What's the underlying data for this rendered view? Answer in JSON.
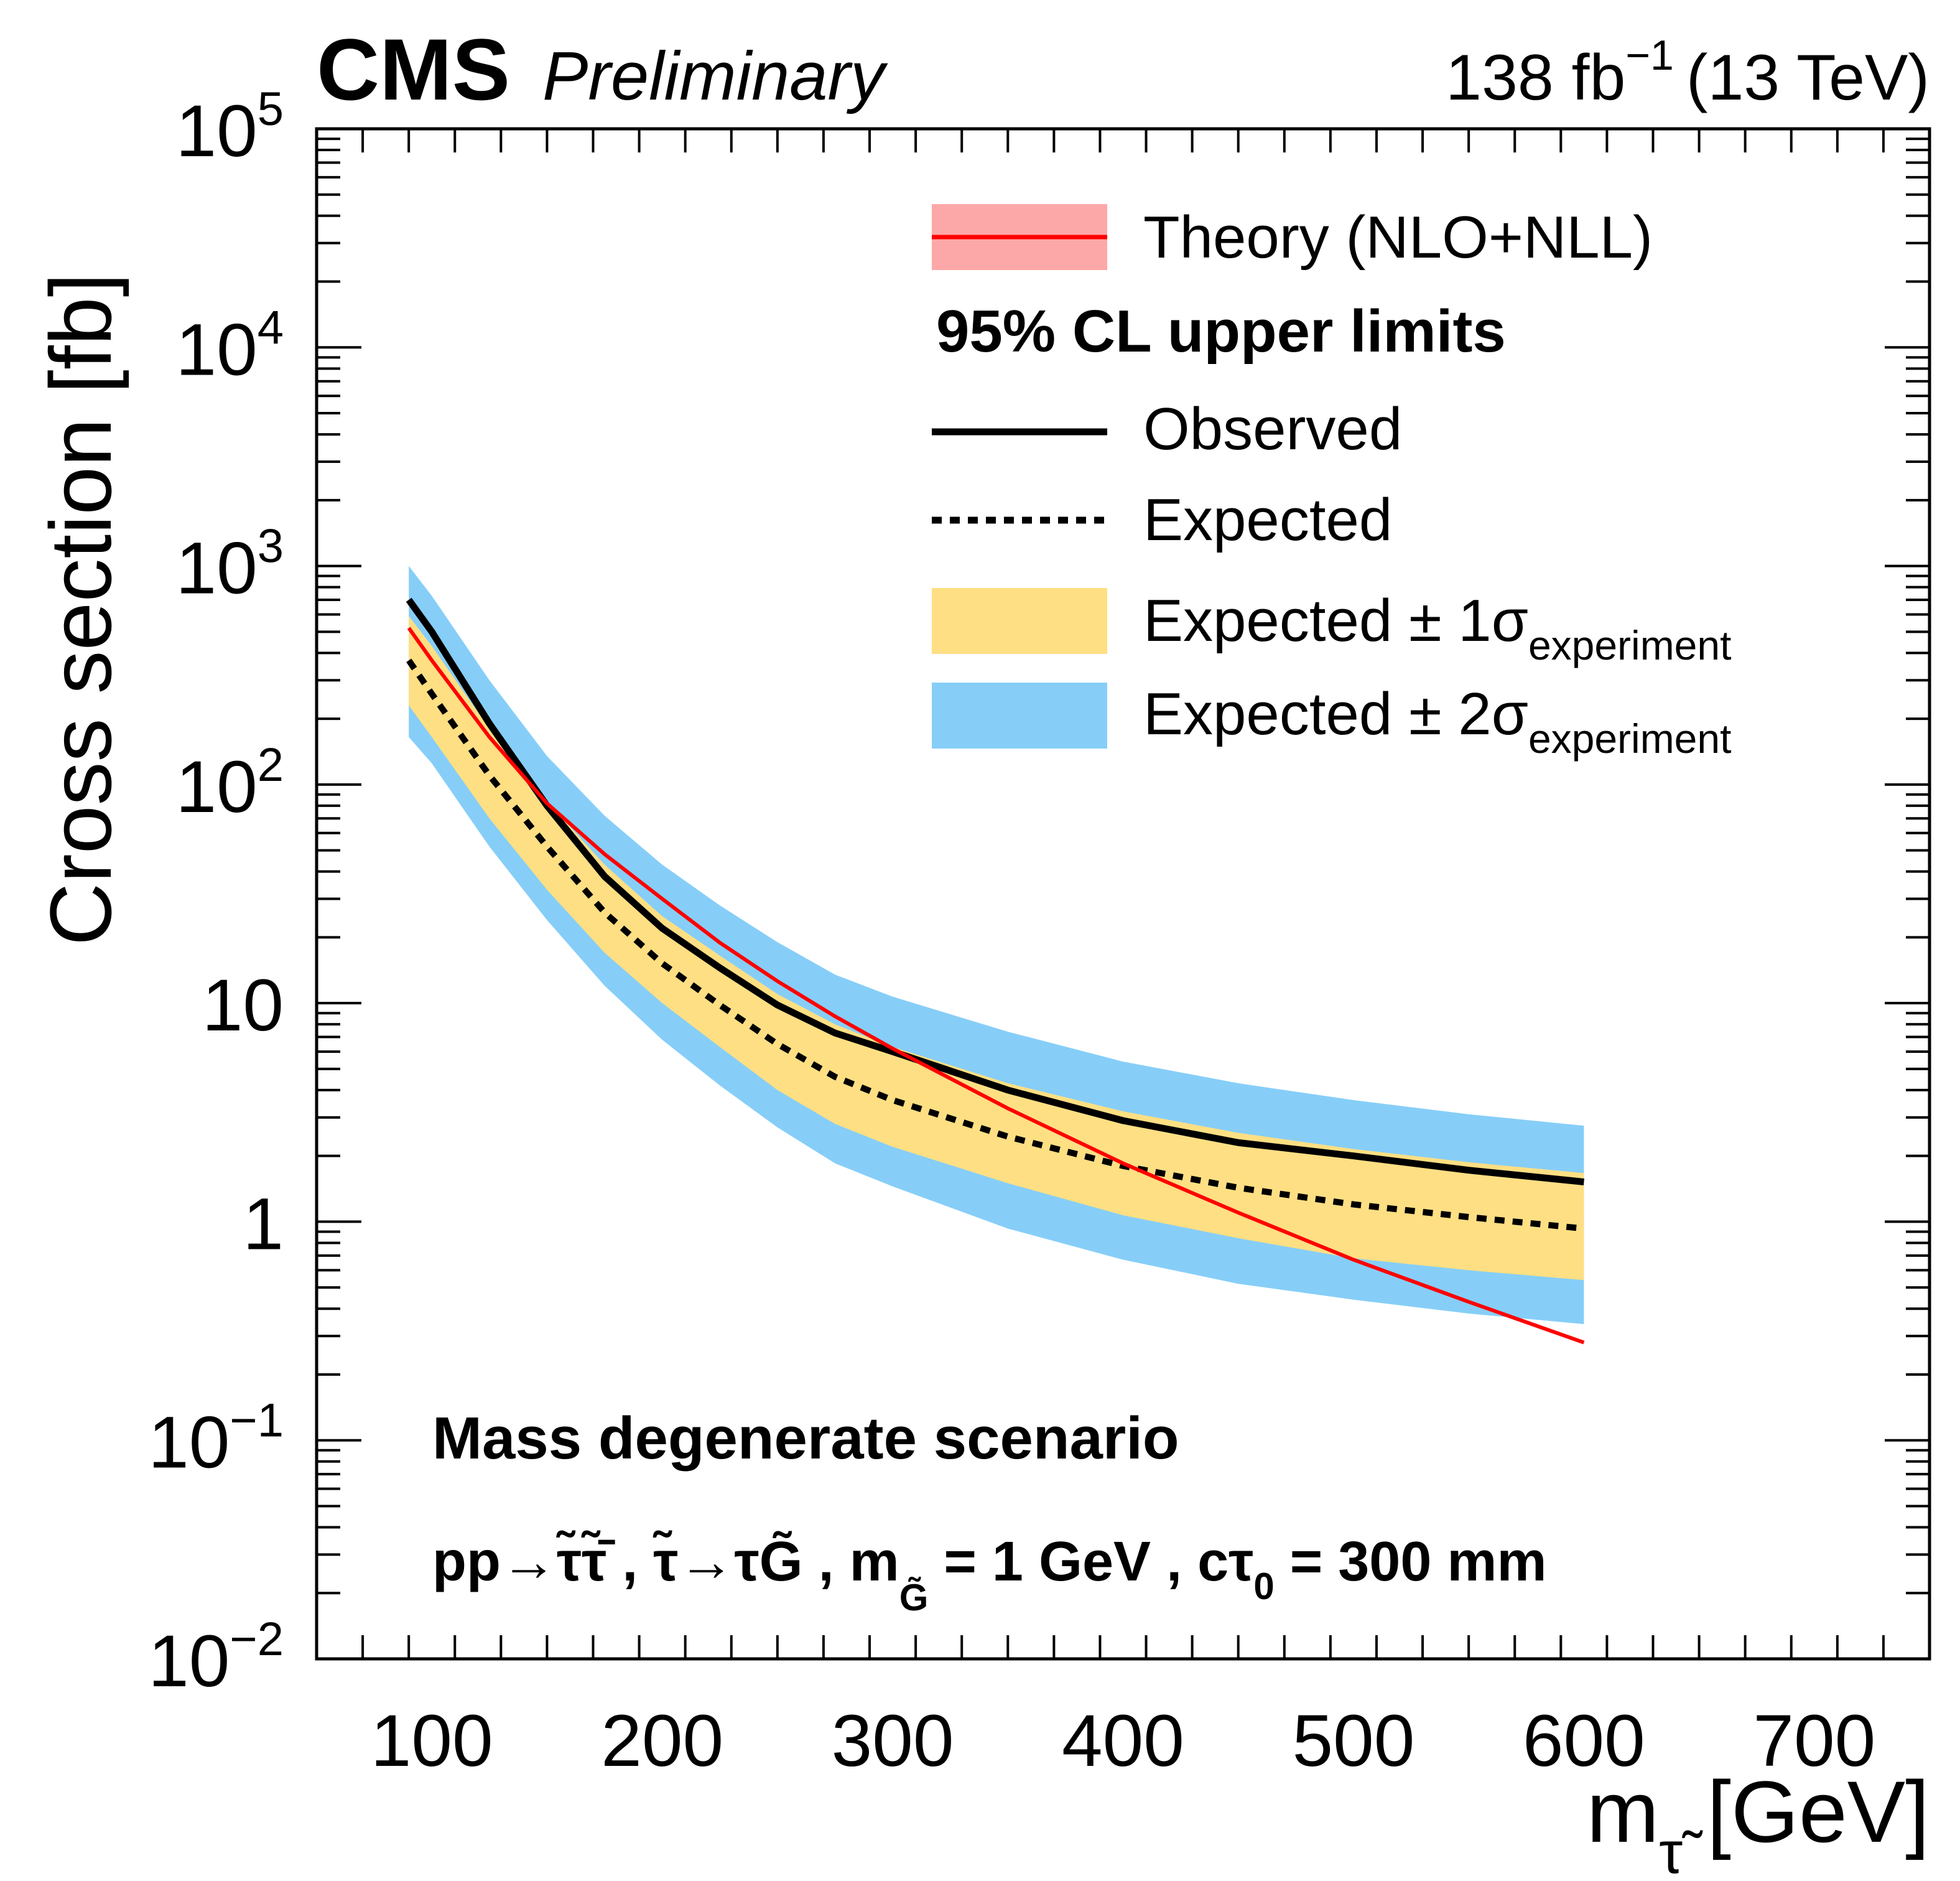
{
  "header": {
    "experiment": "CMS",
    "status": "Preliminary",
    "lumi": "138 fb",
    "lumi_exp": "−1",
    "energy": "(13 TeV)"
  },
  "colors": {
    "theory": "#ff0000",
    "theory_band": "#fda8a8",
    "one_sigma": "#fedf83",
    "two_sigma": "#86cef8",
    "observed": "#000000",
    "expected": "#000000"
  },
  "legend": {
    "theory": "Theory (NLO+NLL)",
    "header": "95% CL upper limits",
    "observed": "Observed",
    "expected": "Expected",
    "one_sigma": "Expected ± 1σ",
    "one_sigma_sub": "experiment",
    "two_sigma": "Expected ± 2σ",
    "two_sigma_sub": "experiment"
  },
  "annotation": {
    "line1": "Mass degenerate scenario",
    "process": "pp→τ̃τ̃̄ , τ̃→τG̃ , m",
    "process_sub": "G̃",
    "process_tail": " = 1 GeV , cτ",
    "ctau_sub": "0",
    "ctau_value": " = 300 mm"
  },
  "chart_data": {
    "type": "line",
    "xlabel": "m",
    "xlabel_sub": "τ̃",
    "xlabel_unit": " [GeV]",
    "ylabel": "Cross section [fb]",
    "xlim": [
      50,
      750
    ],
    "ylim": [
      0.01,
      100000
    ],
    "yscale": "log",
    "x_ticks": [
      "100",
      "200",
      "300",
      "400",
      "500",
      "600",
      "700"
    ],
    "y_ticks": [
      {
        "base": "10",
        "exp": "5"
      },
      {
        "base": "10",
        "exp": "4"
      },
      {
        "base": "10",
        "exp": "3"
      },
      {
        "base": "10",
        "exp": "2"
      },
      {
        "base": "10",
        "exp": ""
      },
      {
        "base": "1",
        "exp": ""
      },
      {
        "base": "10",
        "exp": "−1"
      },
      {
        "base": "10",
        "exp": "−2"
      }
    ],
    "legend_position": "top-right",
    "x": [
      90,
      100,
      125,
      150,
      175,
      200,
      225,
      250,
      275,
      300,
      350,
      400,
      450,
      500,
      550,
      600
    ],
    "series": [
      {
        "name": "Observed",
        "values": [
          700,
          500,
          190,
          80,
          38,
          22,
          14.5,
          9.8,
          7.3,
          6.0,
          4.0,
          2.9,
          2.3,
          2.0,
          1.72,
          1.52
        ]
      },
      {
        "name": "Expected",
        "values": [
          370,
          260,
          110,
          52,
          26,
          15.2,
          9.8,
          6.5,
          4.6,
          3.6,
          2.45,
          1.8,
          1.43,
          1.2,
          1.05,
          0.93
        ]
      },
      {
        "name": "Expected ± 1σ lower",
        "values": [
          230,
          165,
          70,
          33,
          17,
          10.0,
          6.3,
          4.0,
          2.8,
          2.2,
          1.5,
          1.07,
          0.84,
          0.68,
          0.6,
          0.54
        ]
      },
      {
        "name": "Expected ± 1σ upper",
        "values": [
          590,
          430,
          180,
          84,
          43,
          25,
          16.5,
          11.0,
          8.0,
          6.3,
          4.3,
          3.2,
          2.55,
          2.15,
          1.87,
          1.67
        ]
      },
      {
        "name": "Expected ± 2σ lower",
        "values": [
          165,
          125,
          52,
          24,
          12,
          6.8,
          4.2,
          2.7,
          1.85,
          1.45,
          0.93,
          0.67,
          0.52,
          0.44,
          0.38,
          0.34
        ]
      },
      {
        "name": "Expected ± 2σ upper",
        "values": [
          1000,
          730,
          300,
          135,
          72,
          43,
          28,
          19,
          13.5,
          10.7,
          7.4,
          5.4,
          4.3,
          3.6,
          3.1,
          2.75
        ]
      },
      {
        "name": "Theory (NLO+NLL)",
        "values": [
          520,
          370,
          165,
          82,
          48,
          30,
          18.9,
          12.6,
          8.7,
          6.2,
          3.3,
          1.85,
          1.1,
          0.67,
          0.43,
          0.28
        ]
      }
    ]
  }
}
